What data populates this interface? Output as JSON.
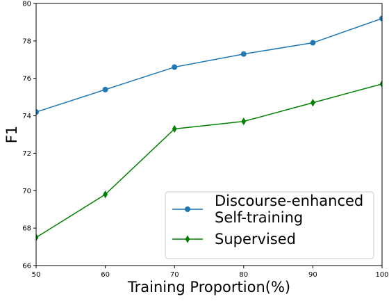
{
  "chart_data": {
    "type": "line",
    "xlabel": "Training Proportion(%)",
    "ylabel": "F1",
    "x": [
      50,
      60,
      70,
      80,
      90,
      100
    ],
    "xlim": [
      50,
      100
    ],
    "ylim": [
      66,
      80
    ],
    "xticks": [
      50,
      60,
      70,
      80,
      90,
      100
    ],
    "yticks": [
      66,
      68,
      70,
      72,
      74,
      76,
      78,
      80
    ],
    "grid": false,
    "legend_position": "lower-right",
    "series": [
      {
        "name_lines": [
          "Discourse-enhanced",
          "Self-training"
        ],
        "values": [
          74.2,
          75.4,
          76.6,
          77.3,
          77.9,
          79.2
        ],
        "color": "#1f77b4",
        "marker": "circle"
      },
      {
        "name_lines": [
          "Supervised"
        ],
        "values": [
          67.5,
          69.8,
          73.3,
          73.7,
          74.7,
          75.7
        ],
        "color": "#008000",
        "marker": "thin-diamond"
      }
    ]
  }
}
